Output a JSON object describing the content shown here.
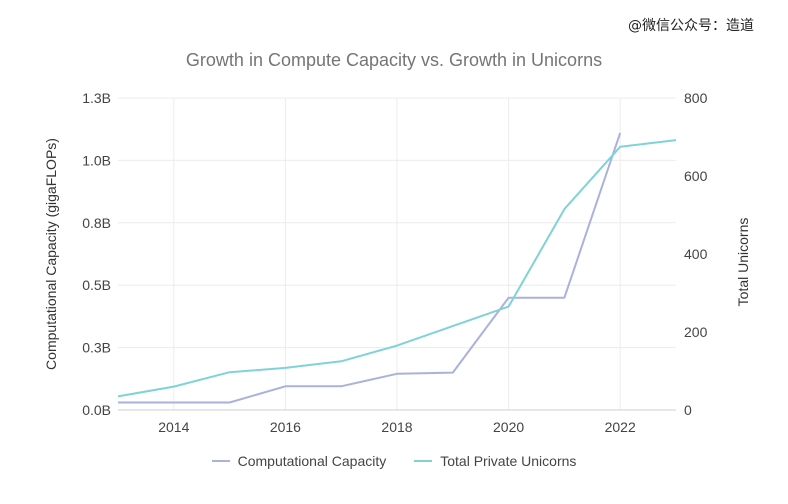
{
  "watermark": "@微信公众号：造道",
  "chart_data": {
    "type": "line",
    "title": "Growth in Compute Capacity vs. Growth in Unicorns",
    "xlabel": "",
    "x_ticks": [
      "2014",
      "2016",
      "2018",
      "2020",
      "2022"
    ],
    "xlim": [
      2013,
      2023
    ],
    "y_left": {
      "label": "Computational Capacity (gigaFLOPs)",
      "ticks": [
        "0.0B",
        "0.3B",
        "0.5B",
        "0.8B",
        "1.0B",
        "1.3B"
      ],
      "tick_values": [
        0,
        0.25,
        0.5,
        0.75,
        1.0,
        1.25
      ],
      "lim": [
        0,
        1.25
      ]
    },
    "y_right": {
      "label": "Total Unicorns",
      "ticks": [
        "0",
        "200",
        "400",
        "600",
        "800"
      ],
      "tick_values": [
        0,
        200,
        400,
        600,
        800
      ],
      "lim": [
        0,
        800
      ]
    },
    "grid": true,
    "legend_position": "bottom",
    "series": [
      {
        "name": "Computational Capacity",
        "axis": "left",
        "color": "#aab1dd",
        "x": [
          2013,
          2014,
          2015,
          2016,
          2017,
          2018,
          2019,
          2020,
          2021,
          2022
        ],
        "values": [
          0.03,
          0.03,
          0.03,
          0.095,
          0.095,
          0.145,
          0.15,
          0.45,
          0.45,
          1.11
        ]
      },
      {
        "name": "Total Private Unicorns",
        "axis": "right",
        "color": "#7fd3d8",
        "x": [
          2013,
          2014,
          2015,
          2016,
          2017,
          2018,
          2019,
          2020,
          2021,
          2022,
          2023
        ],
        "values": [
          35,
          60,
          97,
          108,
          125,
          165,
          215,
          265,
          515,
          675,
          692
        ]
      }
    ]
  }
}
